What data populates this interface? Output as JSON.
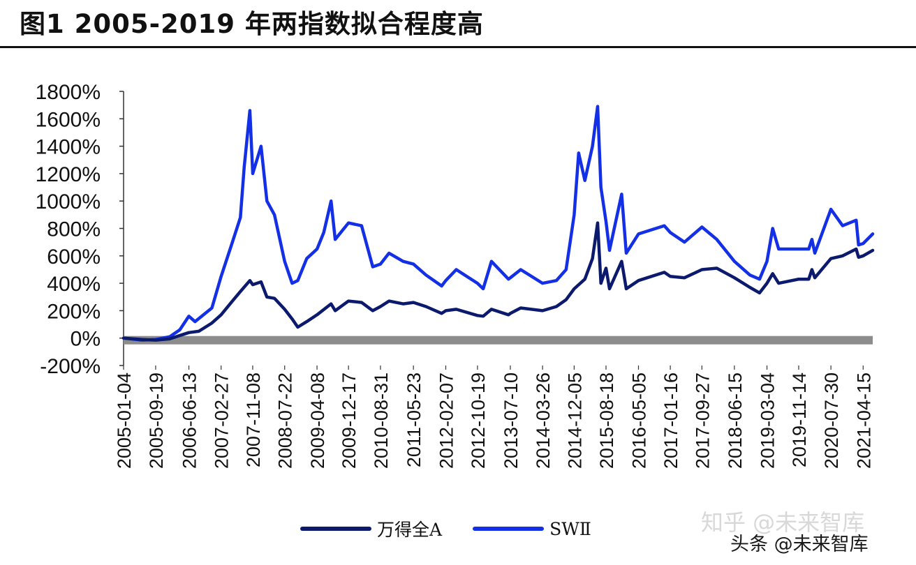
{
  "figure": {
    "title": "图1   2005-2019 年两指数拟合程度高"
  },
  "chart_data": {
    "type": "line",
    "ylim": [
      -200,
      1800
    ],
    "y_ticks": [
      "1800%",
      "1600%",
      "1400%",
      "1200%",
      "1000%",
      "800%",
      "600%",
      "400%",
      "200%",
      "0%",
      "-200%"
    ],
    "y_tick_values": [
      1800,
      1600,
      1400,
      1200,
      1000,
      800,
      600,
      400,
      200,
      0,
      -200
    ],
    "x_ticks": [
      "2005-01-04",
      "2005-09-19",
      "2006-06-13",
      "2007-02-27",
      "2007-11-08",
      "2008-07-22",
      "2009-04-08",
      "2009-12-17",
      "2010-08-31",
      "2011-05-23",
      "2012-02-07",
      "2012-10-19",
      "2013-07-10",
      "2014-03-26",
      "2014-12-05",
      "2015-08-18",
      "2016-05-05",
      "2017-01-16",
      "2017-09-27",
      "2018-06-15",
      "2019-03-04",
      "2019-11-14",
      "2020-07-30",
      "2021-04-15"
    ],
    "x_range": [
      "2005-01-04",
      "2021-07-01"
    ],
    "grid": false,
    "legend_position": "bottom",
    "series": [
      {
        "name": "万得全A",
        "color": "#0c1a6e",
        "points": [
          [
            "2005-01-04",
            0
          ],
          [
            "2005-06-01",
            -10
          ],
          [
            "2005-09-19",
            -15
          ],
          [
            "2006-01-10",
            -5
          ],
          [
            "2006-06-13",
            40
          ],
          [
            "2006-09-01",
            50
          ],
          [
            "2006-12-15",
            110
          ],
          [
            "2007-02-27",
            170
          ],
          [
            "2007-05-29",
            270
          ],
          [
            "2007-08-01",
            340
          ],
          [
            "2007-10-16",
            420
          ],
          [
            "2007-11-08",
            390
          ],
          [
            "2008-01-14",
            410
          ],
          [
            "2008-03-01",
            300
          ],
          [
            "2008-05-01",
            290
          ],
          [
            "2008-07-22",
            210
          ],
          [
            "2008-09-20",
            140
          ],
          [
            "2008-11-04",
            80
          ],
          [
            "2009-01-15",
            120
          ],
          [
            "2009-04-08",
            170
          ],
          [
            "2009-07-30",
            250
          ],
          [
            "2009-09-01",
            200
          ],
          [
            "2009-12-17",
            270
          ],
          [
            "2010-04-01",
            260
          ],
          [
            "2010-06-30",
            200
          ],
          [
            "2010-08-31",
            230
          ],
          [
            "2010-11-08",
            270
          ],
          [
            "2011-03-01",
            250
          ],
          [
            "2011-05-23",
            260
          ],
          [
            "2011-09-01",
            230
          ],
          [
            "2012-01-05",
            180
          ],
          [
            "2012-02-07",
            200
          ],
          [
            "2012-05-01",
            210
          ],
          [
            "2012-10-19",
            165
          ],
          [
            "2012-12-04",
            160
          ],
          [
            "2013-02-08",
            210
          ],
          [
            "2013-06-25",
            170
          ],
          [
            "2013-07-10",
            180
          ],
          [
            "2013-10-01",
            220
          ],
          [
            "2014-03-26",
            200
          ],
          [
            "2014-07-15",
            230
          ],
          [
            "2014-10-01",
            280
          ],
          [
            "2014-12-05",
            360
          ],
          [
            "2015-03-01",
            430
          ],
          [
            "2015-05-01",
            580
          ],
          [
            "2015-06-12",
            840
          ],
          [
            "2015-07-08",
            400
          ],
          [
            "2015-08-18",
            510
          ],
          [
            "2015-09-15",
            360
          ],
          [
            "2015-12-22",
            560
          ],
          [
            "2016-01-28",
            360
          ],
          [
            "2016-05-05",
            420
          ],
          [
            "2016-11-29",
            480
          ],
          [
            "2017-01-16",
            450
          ],
          [
            "2017-05-10",
            440
          ],
          [
            "2017-09-27",
            500
          ],
          [
            "2018-01-24",
            510
          ],
          [
            "2018-06-15",
            440
          ],
          [
            "2018-10-18",
            370
          ],
          [
            "2019-01-03",
            330
          ],
          [
            "2019-03-04",
            400
          ],
          [
            "2019-04-19",
            470
          ],
          [
            "2019-06-06",
            400
          ],
          [
            "2019-11-14",
            430
          ],
          [
            "2020-02-03",
            430
          ],
          [
            "2020-02-28",
            500
          ],
          [
            "2020-03-23",
            440
          ],
          [
            "2020-07-30",
            580
          ],
          [
            "2020-11-01",
            600
          ],
          [
            "2021-02-18",
            650
          ],
          [
            "2021-03-09",
            590
          ],
          [
            "2021-04-15",
            600
          ],
          [
            "2021-07-01",
            640
          ]
        ]
      },
      {
        "name": "SWⅡ",
        "color": "#1430e6",
        "points": [
          [
            "2005-01-04",
            0
          ],
          [
            "2005-06-01",
            -15
          ],
          [
            "2005-09-19",
            -10
          ],
          [
            "2006-01-10",
            10
          ],
          [
            "2006-04-01",
            60
          ],
          [
            "2006-06-13",
            160
          ],
          [
            "2006-08-01",
            120
          ],
          [
            "2006-12-15",
            220
          ],
          [
            "2007-02-27",
            450
          ],
          [
            "2007-05-29",
            700
          ],
          [
            "2007-08-01",
            880
          ],
          [
            "2007-09-01",
            1250
          ],
          [
            "2007-10-16",
            1660
          ],
          [
            "2007-11-08",
            1200
          ],
          [
            "2008-01-14",
            1400
          ],
          [
            "2008-03-01",
            1000
          ],
          [
            "2008-05-01",
            900
          ],
          [
            "2008-07-22",
            560
          ],
          [
            "2008-09-20",
            400
          ],
          [
            "2008-11-04",
            420
          ],
          [
            "2009-01-15",
            580
          ],
          [
            "2009-04-08",
            650
          ],
          [
            "2009-06-01",
            770
          ],
          [
            "2009-07-30",
            1000
          ],
          [
            "2009-09-01",
            720
          ],
          [
            "2009-12-17",
            840
          ],
          [
            "2010-04-01",
            820
          ],
          [
            "2010-06-30",
            520
          ],
          [
            "2010-08-31",
            540
          ],
          [
            "2010-11-08",
            620
          ],
          [
            "2011-03-01",
            560
          ],
          [
            "2011-05-23",
            540
          ],
          [
            "2011-09-01",
            460
          ],
          [
            "2012-01-05",
            380
          ],
          [
            "2012-02-07",
            420
          ],
          [
            "2012-05-01",
            500
          ],
          [
            "2012-10-19",
            400
          ],
          [
            "2012-12-04",
            360
          ],
          [
            "2013-02-08",
            560
          ],
          [
            "2013-06-25",
            430
          ],
          [
            "2013-07-10",
            440
          ],
          [
            "2013-10-01",
            500
          ],
          [
            "2014-03-26",
            400
          ],
          [
            "2014-07-15",
            420
          ],
          [
            "2014-10-01",
            500
          ],
          [
            "2014-12-05",
            900
          ],
          [
            "2015-01-10",
            1350
          ],
          [
            "2015-03-01",
            1150
          ],
          [
            "2015-05-01",
            1400
          ],
          [
            "2015-06-12",
            1690
          ],
          [
            "2015-07-08",
            1100
          ],
          [
            "2015-08-18",
            850
          ],
          [
            "2015-09-15",
            640
          ],
          [
            "2015-12-22",
            1050
          ],
          [
            "2016-01-28",
            620
          ],
          [
            "2016-05-05",
            760
          ],
          [
            "2016-11-29",
            820
          ],
          [
            "2017-01-16",
            770
          ],
          [
            "2017-05-10",
            700
          ],
          [
            "2017-09-27",
            810
          ],
          [
            "2018-01-24",
            720
          ],
          [
            "2018-06-15",
            560
          ],
          [
            "2018-10-18",
            460
          ],
          [
            "2019-01-03",
            430
          ],
          [
            "2019-03-04",
            560
          ],
          [
            "2019-04-19",
            800
          ],
          [
            "2019-06-06",
            650
          ],
          [
            "2019-11-14",
            650
          ],
          [
            "2020-02-03",
            650
          ],
          [
            "2020-02-28",
            720
          ],
          [
            "2020-03-23",
            620
          ],
          [
            "2020-07-30",
            940
          ],
          [
            "2020-11-01",
            820
          ],
          [
            "2021-02-18",
            860
          ],
          [
            "2021-03-09",
            680
          ],
          [
            "2021-04-15",
            690
          ],
          [
            "2021-07-01",
            760
          ]
        ]
      }
    ]
  },
  "legend": {
    "items": [
      {
        "label": "万得全A",
        "color": "#0c1a6e"
      },
      {
        "label": "SWⅡ",
        "color": "#1430e6"
      }
    ]
  },
  "watermark": {
    "zhihu": "知乎 @未来智库",
    "toutiao": "头条 @未来智库"
  }
}
